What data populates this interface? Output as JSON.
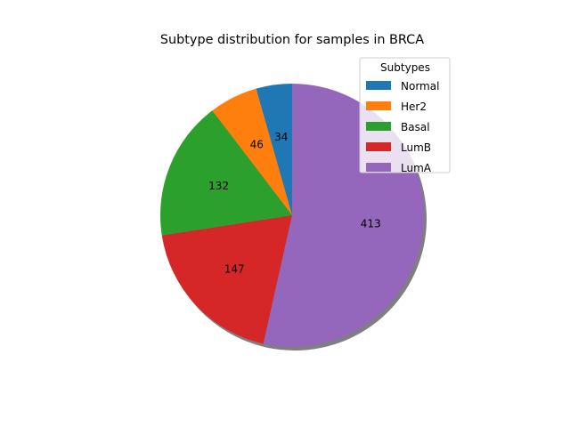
{
  "chart_data": {
    "type": "pie",
    "title": "Subtype distribution for samples in BRCA",
    "legend_title": "Subtypes",
    "legend_position": "top-right",
    "shadow": true,
    "start_angle_deg": 90,
    "direction": "counterclockwise",
    "slices": [
      {
        "label": "Normal",
        "value": 34,
        "color": "#1f77b4"
      },
      {
        "label": "Her2",
        "value": 46,
        "color": "#ff7f0e"
      },
      {
        "label": "Basal",
        "value": 132,
        "color": "#2ca02c"
      },
      {
        "label": "LumB",
        "value": 147,
        "color": "#d62728"
      },
      {
        "label": "LumA",
        "value": 413,
        "color": "#9467bd"
      }
    ]
  }
}
